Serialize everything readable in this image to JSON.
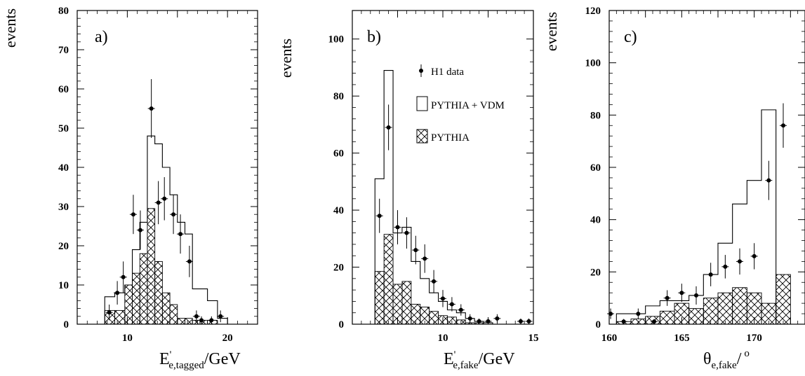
{
  "chart_data": [
    {
      "type": "histogram",
      "panel_label": "a)",
      "ylabel": "events",
      "xlabel_main": "E",
      "xlabel_sub": "e,tagged",
      "xlabel_unit": "/GeV",
      "prime": "'",
      "xlim": [
        5,
        23
      ],
      "ylim": [
        0,
        80
      ],
      "xticks": [
        10,
        20
      ],
      "yticks": [
        0,
        10,
        20,
        30,
        40,
        50,
        60,
        70,
        80
      ],
      "bin_edges": [
        7.75,
        8.75,
        9.75,
        10.5,
        11.25,
        12,
        12.75,
        13.5,
        14.25,
        15,
        15.75,
        16.5,
        17.25,
        18,
        19,
        20
      ],
      "pythia_vdm": [
        7,
        8,
        10,
        19,
        26,
        48,
        46,
        40,
        33,
        26,
        23,
        9,
        9,
        6,
        1.5
      ],
      "pythia": [
        3.5,
        3.5,
        10,
        13,
        18,
        29.5,
        16,
        8,
        5,
        1.5,
        1.5,
        1,
        1,
        1,
        0
      ],
      "data_points": {
        "x": [
          8.2,
          9,
          9.6,
          10.6,
          11.3,
          12.4,
          13.1,
          13.7,
          14.6,
          15.3,
          16.2,
          16.9,
          17.4,
          18.4,
          19.3
        ],
        "y": [
          3,
          8,
          12,
          28,
          24,
          55,
          31,
          32,
          28,
          23,
          16,
          2,
          1,
          1,
          2
        ],
        "yerr": [
          2,
          3,
          4,
          5,
          5,
          7.5,
          5.5,
          5.5,
          5,
          5,
          4,
          1.5,
          1,
          1,
          1.5
        ]
      }
    },
    {
      "type": "histogram",
      "panel_label": "b)",
      "ylabel": "events",
      "xlabel_main": "E",
      "xlabel_sub": "e,fake",
      "xlabel_unit": "/GeV",
      "prime": "'",
      "xlim": [
        5,
        15
      ],
      "ylim": [
        0,
        110
      ],
      "xticks": [
        10,
        15
      ],
      "yticks": [
        0,
        20,
        40,
        60,
        80,
        100
      ],
      "bin_edges": [
        6.25,
        6.75,
        7.25,
        7.75,
        8.25,
        8.75,
        9.25,
        9.75,
        10.25,
        10.75,
        11.25,
        11.75,
        12.25,
        12.75,
        13.25
      ],
      "pythia_vdm": [
        51,
        89,
        32,
        34,
        22,
        16,
        11,
        8,
        5,
        4,
        2,
        1,
        0.5,
        0
      ],
      "pythia": [
        18.5,
        31.5,
        14,
        15,
        7,
        6,
        4.5,
        3,
        2.5,
        1.5,
        0.5,
        0.5,
        0,
        0
      ],
      "data_points": {
        "x": [
          6.5,
          7.0,
          7.5,
          8.0,
          8.5,
          9.0,
          9.5,
          10.0,
          10.5,
          11.0,
          11.5,
          12.0,
          12.5,
          13.0,
          14.3,
          14.75
        ],
        "y": [
          38,
          69,
          34,
          32,
          26,
          23,
          15,
          9,
          7,
          5,
          2,
          1,
          1,
          2,
          1,
          1
        ],
        "yerr": [
          6,
          8,
          6,
          5.5,
          5,
          5,
          4,
          3,
          2.5,
          2,
          1.5,
          1,
          1,
          1.5,
          1,
          1
        ]
      },
      "legend": {
        "data": "H1 data",
        "vdm": "PYTHIA + VDM",
        "pythia": "PYTHIA"
      }
    },
    {
      "type": "histogram",
      "panel_label": "c)",
      "ylabel": "events",
      "xlabel_main": "θ",
      "xlabel_sub": "e,fake",
      "xlabel_unit": "/",
      "superscript": "o",
      "xlim": [
        160,
        173.5
      ],
      "ylim": [
        0,
        120
      ],
      "xticks": [
        160,
        165,
        170
      ],
      "yticks": [
        0,
        20,
        40,
        60,
        80,
        100,
        120
      ],
      "bin_edges": [
        160.5,
        161.5,
        162.5,
        163.5,
        164.5,
        165.5,
        166.5,
        167.5,
        168.5,
        169.5,
        170.5,
        171.5,
        172.5
      ],
      "pythia_vdm": [
        4,
        4,
        7,
        9,
        9,
        11,
        19,
        31,
        46,
        55,
        82,
        0
      ],
      "pythia": [
        1,
        2,
        3,
        5,
        8,
        6,
        10,
        12,
        14,
        12,
        8,
        19
      ],
      "data_points": {
        "x": [
          160.1,
          161.0,
          162.0,
          163.1,
          164.0,
          165.0,
          166.0,
          167.0,
          168.0,
          169.0,
          170.0,
          171.0,
          172.0
        ],
        "y": [
          4,
          1,
          4,
          1,
          10,
          12,
          11,
          19,
          22,
          24,
          26,
          55,
          76
        ],
        "yerr": [
          2,
          1,
          2,
          1,
          3,
          3.5,
          3.5,
          4.5,
          4.5,
          5,
          5,
          7.5,
          8.5
        ]
      }
    }
  ]
}
